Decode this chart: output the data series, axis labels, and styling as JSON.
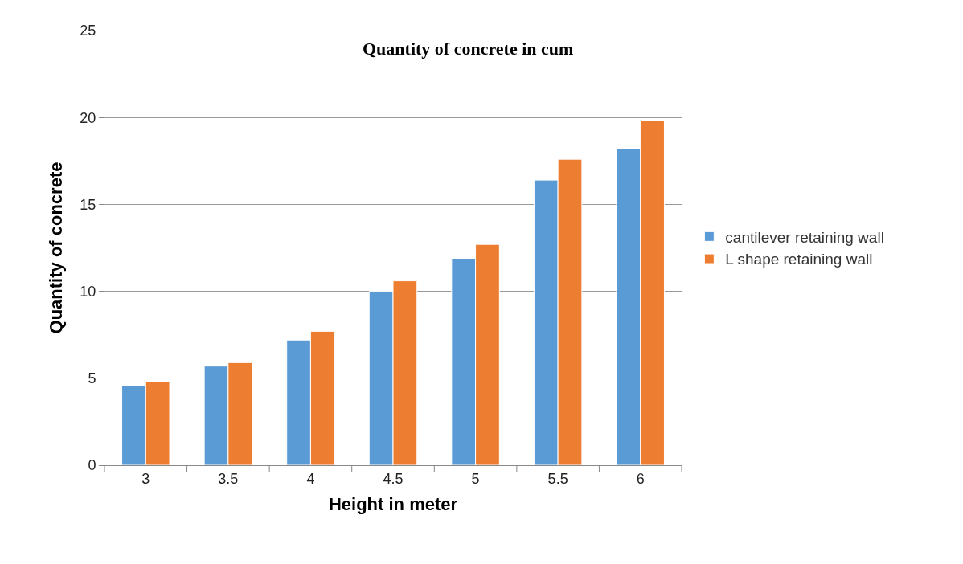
{
  "chart_data": {
    "type": "bar",
    "title": "Quantity of concrete in cum",
    "xlabel": "Height in meter",
    "ylabel": "Quantity of concrete",
    "categories": [
      "3",
      "3.5",
      "4",
      "4.5",
      "5",
      "5.5",
      "6"
    ],
    "series": [
      {
        "name": "cantilever retaining wall",
        "color": "#5b9bd5",
        "values": [
          4.6,
          5.7,
          7.2,
          10.0,
          11.9,
          16.4,
          18.2
        ]
      },
      {
        "name": "L shape retaining wall",
        "color": "#ed7d31",
        "values": [
          4.8,
          5.9,
          7.7,
          10.6,
          12.7,
          17.6,
          19.8
        ]
      }
    ],
    "ylim": [
      0,
      25
    ],
    "yticks": [
      0,
      5,
      10,
      15,
      20,
      25
    ],
    "grid": "y",
    "legend": "right"
  }
}
